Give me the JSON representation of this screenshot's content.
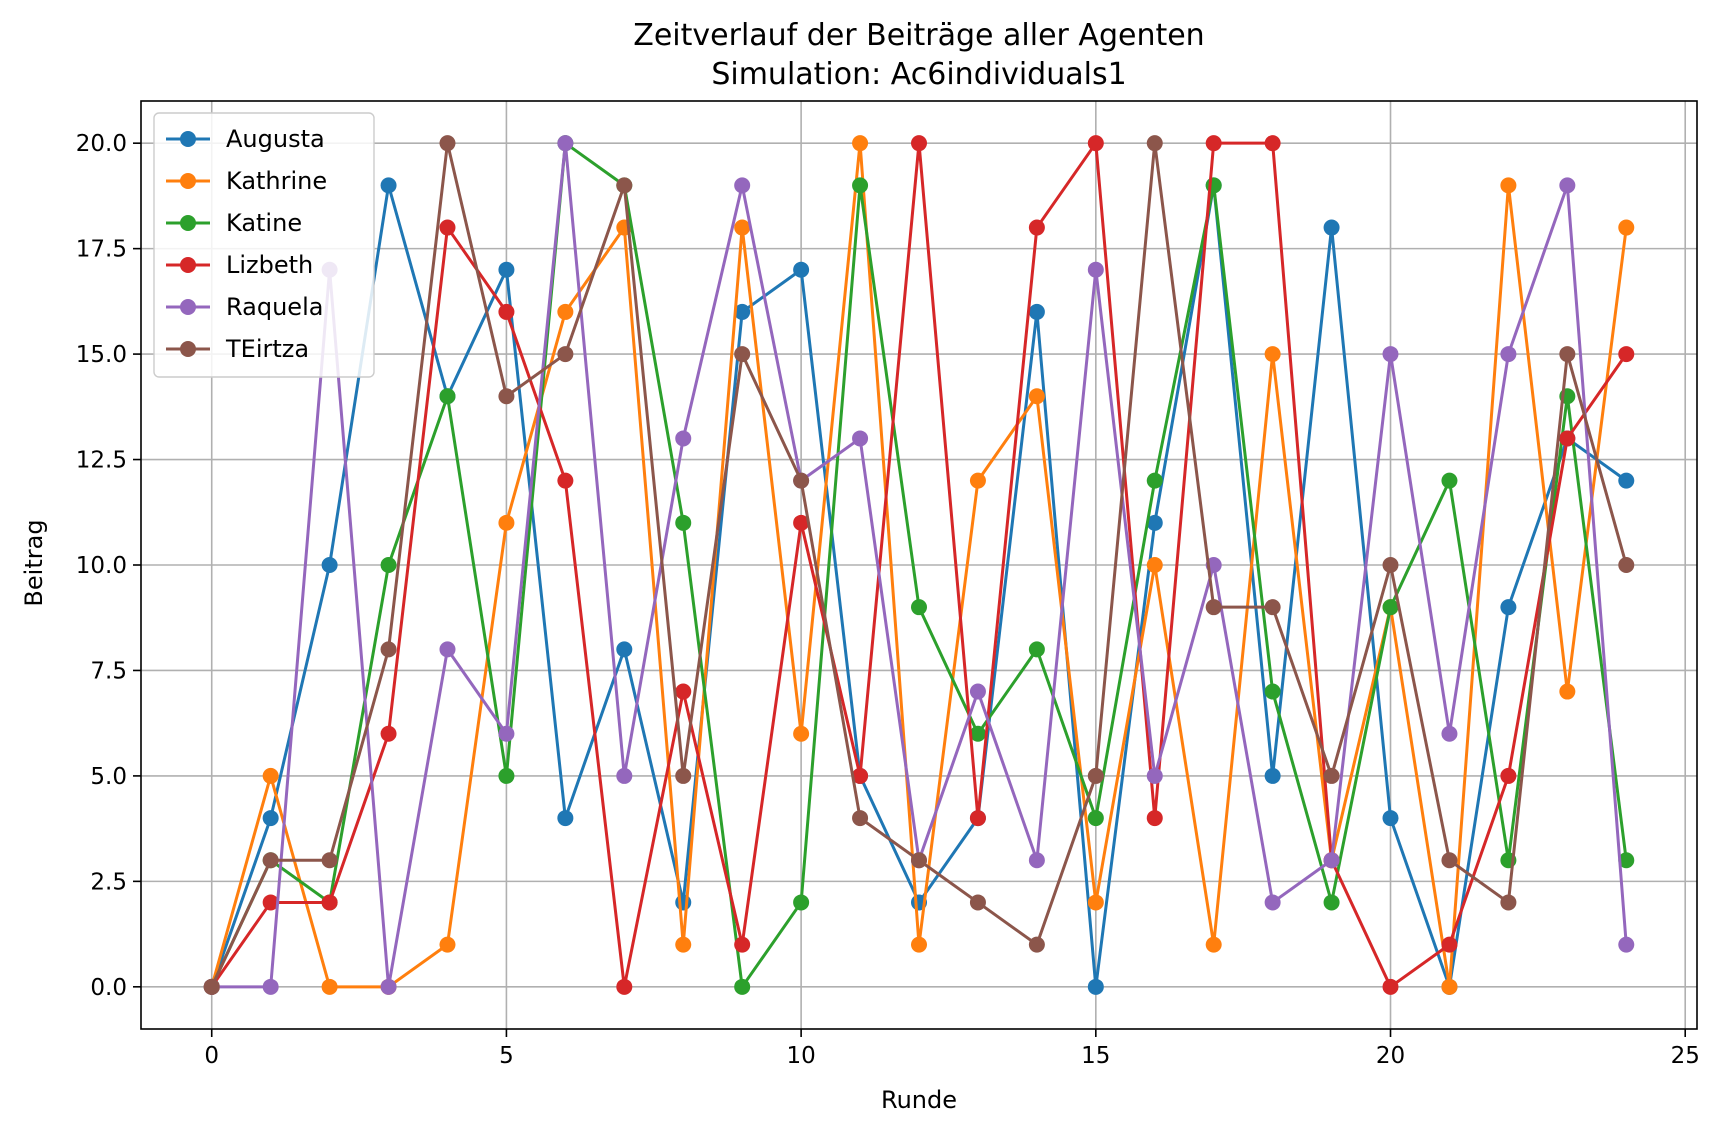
{
  "chart_data": {
    "type": "line",
    "title": "Zeitverlauf der Beiträge aller Agenten",
    "subtitle": "Simulation: Ac6individuals1",
    "xlabel": "Runde",
    "ylabel": "Beitrag",
    "xlim": [
      -1.2,
      25.2
    ],
    "ylim": [
      -1.0,
      21.0
    ],
    "xticks": [
      0,
      5,
      10,
      15,
      20,
      25
    ],
    "yticks": [
      0.0,
      2.5,
      5.0,
      7.5,
      10.0,
      12.5,
      15.0,
      17.5,
      20.0
    ],
    "xtick_labels": [
      "0",
      "5",
      "10",
      "15",
      "20",
      "25"
    ],
    "ytick_labels": [
      "0.0",
      "2.5",
      "5.0",
      "7.5",
      "10.0",
      "12.5",
      "15.0",
      "17.5",
      "20.0"
    ],
    "grid": true,
    "legend_position": "top-left",
    "marker": "circle",
    "x": [
      0,
      1,
      2,
      3,
      4,
      5,
      6,
      7,
      8,
      9,
      10,
      11,
      12,
      13,
      14,
      15,
      16,
      17,
      18,
      19,
      20,
      21,
      22,
      23,
      24
    ],
    "series": [
      {
        "name": "Augusta",
        "color": "#1f77b4",
        "values": [
          0,
          4,
          10,
          19,
          14,
          17,
          4,
          8,
          2,
          16,
          17,
          5,
          2,
          4,
          16,
          0,
          11,
          19,
          5,
          18,
          4,
          0,
          9,
          13,
          12
        ]
      },
      {
        "name": "Kathrine",
        "color": "#ff7f0e",
        "values": [
          0,
          5,
          0,
          0,
          1,
          11,
          16,
          18,
          1,
          18,
          6,
          20,
          1,
          12,
          14,
          2,
          10,
          1,
          15,
          3,
          9,
          0,
          19,
          7,
          18
        ]
      },
      {
        "name": "Katine",
        "color": "#2ca02c",
        "values": [
          0,
          3,
          2,
          10,
          14,
          5,
          20,
          19,
          11,
          0,
          2,
          19,
          9,
          6,
          8,
          4,
          12,
          19,
          7,
          2,
          9,
          12,
          3,
          14,
          3
        ]
      },
      {
        "name": "Lizbeth",
        "color": "#d62728",
        "values": [
          0,
          2,
          2,
          6,
          18,
          16,
          12,
          0,
          7,
          1,
          11,
          5,
          20,
          4,
          18,
          20,
          4,
          20,
          20,
          3,
          0,
          1,
          5,
          13,
          15
        ]
      },
      {
        "name": "Raquela",
        "color": "#9467bd",
        "values": [
          0,
          0,
          17,
          0,
          8,
          6,
          20,
          5,
          13,
          19,
          12,
          13,
          3,
          7,
          3,
          17,
          5,
          10,
          2,
          3,
          15,
          6,
          15,
          19,
          1
        ]
      },
      {
        "name": "TEirtza",
        "color": "#8c564b",
        "values": [
          0,
          3,
          3,
          8,
          20,
          14,
          15,
          19,
          5,
          15,
          12,
          4,
          3,
          2,
          1,
          5,
          20,
          9,
          9,
          5,
          10,
          3,
          2,
          15,
          10
        ]
      }
    ]
  }
}
